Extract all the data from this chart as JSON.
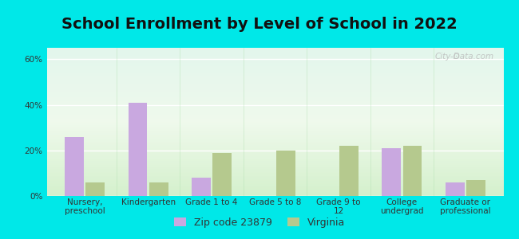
{
  "title": "School Enrollment by Level of School in 2022",
  "categories": [
    "Nursery,\npreschool",
    "Kindergarten",
    "Grade 1 to 4",
    "Grade 5 to 8",
    "Grade 9 to\n12",
    "College\nundergrad",
    "Graduate or\nprofessional"
  ],
  "zip_values": [
    26,
    41,
    8,
    0,
    0,
    21,
    6
  ],
  "va_values": [
    6,
    6,
    19,
    20,
    22,
    22,
    7
  ],
  "zip_color": "#c9a8e0",
  "va_color": "#b5c98e",
  "background_outer": "#00e8e8",
  "background_inner_top": "#f0faf0",
  "background_inner_bottom": "#d8f0d8",
  "ylim": [
    0,
    65
  ],
  "yticks": [
    0,
    20,
    40,
    60
  ],
  "ytick_labels": [
    "0%",
    "20%",
    "40%",
    "60%"
  ],
  "legend_zip_label": "Zip code 23879",
  "legend_va_label": "Virginia",
  "watermark": "City-Data.com",
  "title_fontsize": 14,
  "tick_fontsize": 7.5,
  "legend_fontsize": 9,
  "bar_width": 0.3,
  "bar_gap": 0.03
}
